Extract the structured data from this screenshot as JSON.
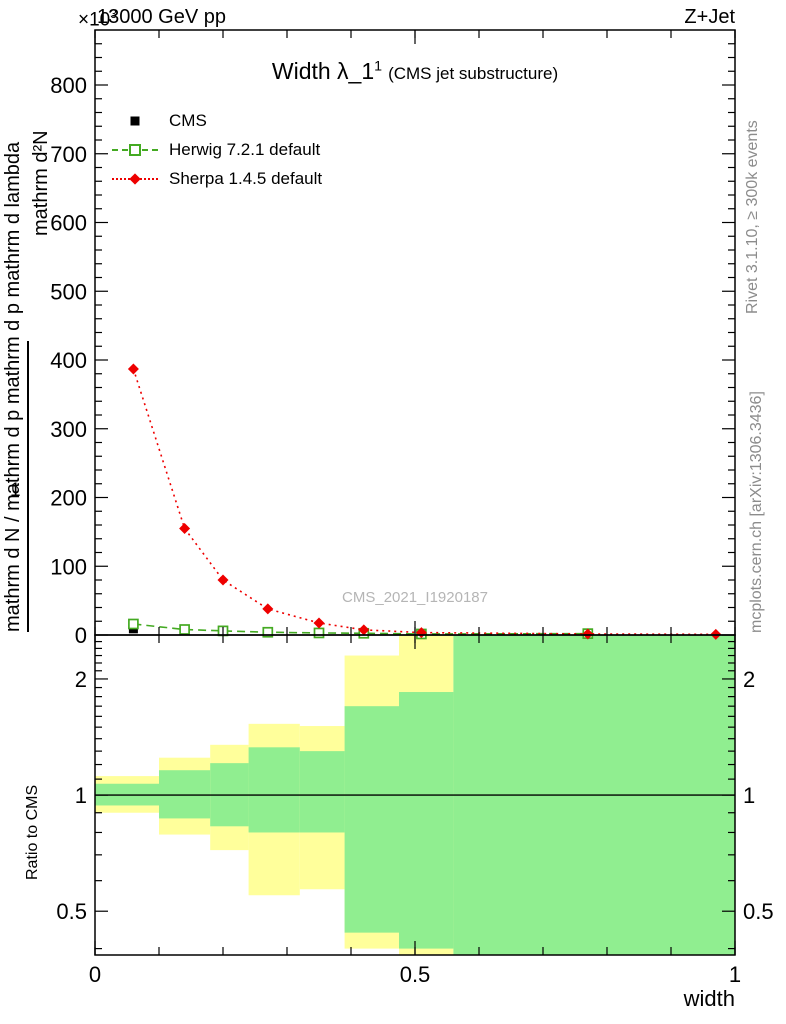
{
  "header": {
    "multiplier": "×10",
    "multiplier_exp": "3",
    "energy": "13000 GeV pp",
    "process": "Z+Jet"
  },
  "title": {
    "main": "Width λ_1",
    "sup": "1",
    "paren": "(CMS jet substructure)"
  },
  "legend": [
    {
      "label": "CMS"
    },
    {
      "label": "Herwig 7.2.1 default"
    },
    {
      "label": "Sherpa 1.4.5 default"
    }
  ],
  "watermark": "CMS_2021_I1920187",
  "ylabel": {
    "numerator": "mathrm d²N",
    "prefix": "1",
    "denominator": "mathrm d N / mathrm d p mathrm d p mathrm d lambda"
  },
  "ratio_ylabel": "Ratio to CMS",
  "xlabel": "width",
  "side_texts": {
    "rivet": "Rivet 3.1.10, ≥ 300k events",
    "mcplots": "mcplots.cern.ch [arXiv:1306.3436]"
  },
  "colors": {
    "cms": "#000000",
    "herwig": "#44aa22",
    "sherpa": "#ee0000",
    "band_yellow": "#ffff9b",
    "band_green": "#90ee90",
    "watermark": "#b5b5b5",
    "side_text": "#8c8c8c",
    "frame": "#000000"
  },
  "chart_data": {
    "type": "line",
    "title": "Width λ_1^1 (CMS jet substructure)",
    "xlabel": "width",
    "ylabel": "1/dN · d²N/(dp dλ)  [×10³]",
    "xlim": [
      0,
      1
    ],
    "ylim_main": [
      0,
      880
    ],
    "yticks_main": [
      0,
      100,
      200,
      300,
      400,
      500,
      600,
      700,
      800
    ],
    "ytick_minor_step": 20,
    "xticks": [
      0,
      0.5,
      1
    ],
    "xtick_labels": [
      "0",
      "0.5",
      "1"
    ],
    "xtick_minor_step": 0.1,
    "grid": false,
    "legend_position": "top-left",
    "ratio_scale": "log",
    "ylim_ratio": [
      0.385,
      2.6
    ],
    "ratio_yticks": [
      0.5,
      1,
      2
    ],
    "ratio_ytick_labels": [
      "0.5",
      "1",
      "2"
    ],
    "ratio_minor_ticks": [
      0.4,
      0.6,
      0.7,
      0.8,
      0.9,
      1.1,
      1.2,
      1.3,
      1.4,
      1.5,
      1.6,
      1.7,
      1.8,
      1.9,
      2.1,
      2.2,
      2.3,
      2.4,
      2.5
    ],
    "ratio_reference": 1,
    "y_units": "10^3 events",
    "series": [
      {
        "name": "CMS",
        "color": "#000000",
        "marker": "filled-square",
        "line": "none",
        "x": [
          0.06,
          0.14,
          0.2,
          0.27,
          0.35,
          0.42,
          0.51,
          0.77
        ],
        "y": [
          9,
          6,
          5,
          4,
          3,
          2,
          1.5,
          2
        ]
      },
      {
        "name": "Herwig 7.2.1 default",
        "color": "#44aa22",
        "marker": "open-square",
        "line": "dashed",
        "x": [
          0.06,
          0.14,
          0.2,
          0.27,
          0.35,
          0.42,
          0.51,
          0.77
        ],
        "y": [
          16,
          8,
          6,
          4,
          3,
          2.5,
          1.5,
          2
        ]
      },
      {
        "name": "Sherpa 1.4.5 default",
        "color": "#ee0000",
        "marker": "filled-diamond",
        "line": "dotted",
        "x": [
          0.06,
          0.14,
          0.2,
          0.27,
          0.35,
          0.42,
          0.51,
          0.77,
          0.97
        ],
        "y": [
          387,
          155,
          80,
          38,
          17.5,
          7.5,
          3.5,
          1.5,
          1
        ]
      }
    ],
    "ratio_bands": [
      {
        "x0": 0.0,
        "x1": 0.1,
        "yellow": [
          0.9,
          1.12
        ],
        "green": [
          0.94,
          1.07
        ]
      },
      {
        "x0": 0.1,
        "x1": 0.18,
        "yellow": [
          0.79,
          1.25
        ],
        "green": [
          0.87,
          1.16
        ]
      },
      {
        "x0": 0.18,
        "x1": 0.24,
        "yellow": [
          0.72,
          1.35
        ],
        "green": [
          0.83,
          1.21
        ]
      },
      {
        "x0": 0.24,
        "x1": 0.32,
        "yellow": [
          0.55,
          1.53
        ],
        "green": [
          0.8,
          1.33
        ]
      },
      {
        "x0": 0.32,
        "x1": 0.39,
        "yellow": [
          0.57,
          1.51
        ],
        "green": [
          0.8,
          1.3
        ]
      },
      {
        "x0": 0.39,
        "x1": 0.475,
        "yellow": [
          0.4,
          2.3
        ],
        "green": [
          0.44,
          1.7
        ]
      },
      {
        "x0": 0.475,
        "x1": 0.56,
        "yellow": [
          0.385,
          2.6
        ],
        "green": [
          0.4,
          1.85
        ]
      },
      {
        "x0": 0.56,
        "x1": 1.0,
        "yellow": null,
        "green": [
          0.385,
          2.6
        ]
      }
    ]
  }
}
